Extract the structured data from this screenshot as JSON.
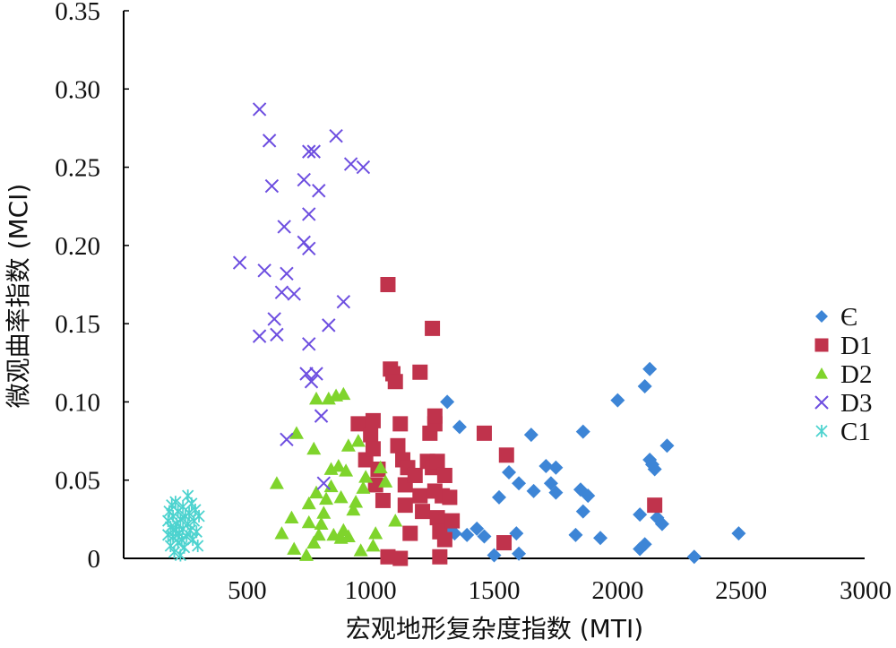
{
  "chart_data": {
    "type": "scatter",
    "title": "",
    "xlabel": "宏观地形复杂度指数 (MTI)",
    "ylabel": "微观曲率指数 (MCI)",
    "xlim": [
      0,
      3000
    ],
    "ylim": [
      0,
      0.35
    ],
    "xticks": [
      "500",
      "1000",
      "1500",
      "2000",
      "2500",
      "3000"
    ],
    "yticks": [
      "0",
      "0.05",
      "0.10",
      "0.15",
      "0.20",
      "0.25",
      "0.30",
      "0.35"
    ],
    "grid": false,
    "legend_position": "right",
    "series": [
      {
        "name": "Є",
        "marker": "diamond",
        "color": "#3d85d6",
        "points": [
          [
            1310,
            0.1
          ],
          [
            1360,
            0.084
          ],
          [
            1310,
            0.019
          ],
          [
            1340,
            0.016
          ],
          [
            1390,
            0.015
          ],
          [
            1430,
            0.019
          ],
          [
            1460,
            0.014
          ],
          [
            1500,
            0.002
          ],
          [
            1520,
            0.039
          ],
          [
            1560,
            0.055
          ],
          [
            1590,
            0.016
          ],
          [
            1600,
            0.048
          ],
          [
            1600,
            0.003
          ],
          [
            1650,
            0.079
          ],
          [
            1660,
            0.043
          ],
          [
            1710,
            0.059
          ],
          [
            1730,
            0.048
          ],
          [
            1750,
            0.058
          ],
          [
            1750,
            0.042
          ],
          [
            1830,
            0.015
          ],
          [
            1850,
            0.044
          ],
          [
            1860,
            0.081
          ],
          [
            1860,
            0.03
          ],
          [
            1880,
            0.04
          ],
          [
            1930,
            0.013
          ],
          [
            2000,
            0.101
          ],
          [
            2090,
            0.028
          ],
          [
            2090,
            0.006
          ],
          [
            2110,
            0.11
          ],
          [
            2110,
            0.009
          ],
          [
            2130,
            0.121
          ],
          [
            2130,
            0.063
          ],
          [
            2140,
            0.06
          ],
          [
            2150,
            0.057
          ],
          [
            2160,
            0.026
          ],
          [
            2180,
            0.022
          ],
          [
            2200,
            0.072
          ],
          [
            2310,
            0.001
          ],
          [
            2490,
            0.016
          ]
        ]
      },
      {
        "name": "D1",
        "marker": "square",
        "color": "#c0334c",
        "points": [
          [
            950,
            0.086
          ],
          [
            980,
            0.063
          ],
          [
            1000,
            0.079
          ],
          [
            1010,
            0.088
          ],
          [
            1010,
            0.07
          ],
          [
            1020,
            0.047
          ],
          [
            1030,
            0.057
          ],
          [
            1050,
            0.037
          ],
          [
            1070,
            0.175
          ],
          [
            1070,
            0.001
          ],
          [
            1080,
            0.121
          ],
          [
            1090,
            0.118
          ],
          [
            1100,
            0.113
          ],
          [
            1110,
            0.072
          ],
          [
            1120,
            0.086
          ],
          [
            1120,
            0.0
          ],
          [
            1130,
            0.063
          ],
          [
            1140,
            0.047
          ],
          [
            1140,
            0.034
          ],
          [
            1150,
            0.058
          ],
          [
            1160,
            0.016
          ],
          [
            1180,
            0.053
          ],
          [
            1200,
            0.119
          ],
          [
            1200,
            0.04
          ],
          [
            1210,
            0.03
          ],
          [
            1230,
            0.062
          ],
          [
            1240,
            0.08
          ],
          [
            1250,
            0.147
          ],
          [
            1250,
            0.058
          ],
          [
            1260,
            0.043
          ],
          [
            1260,
            0.086
          ],
          [
            1260,
            0.091
          ],
          [
            1270,
            0.062
          ],
          [
            1270,
            0.026
          ],
          [
            1280,
            0.001
          ],
          [
            1280,
            0.017
          ],
          [
            1290,
            0.04
          ],
          [
            1300,
            0.053
          ],
          [
            1300,
            0.012
          ],
          [
            1320,
            0.039
          ],
          [
            1330,
            0.024
          ],
          [
            1460,
            0.08
          ],
          [
            1540,
            0.01
          ],
          [
            1550,
            0.066
          ],
          [
            2150,
            0.034
          ]
        ]
      },
      {
        "name": "D2",
        "marker": "triangle",
        "color": "#7fd42c",
        "points": [
          [
            620,
            0.048
          ],
          [
            640,
            0.016
          ],
          [
            680,
            0.026
          ],
          [
            690,
            0.006
          ],
          [
            700,
            0.08
          ],
          [
            740,
            0.002
          ],
          [
            750,
            0.023
          ],
          [
            750,
            0.035
          ],
          [
            770,
            0.01
          ],
          [
            770,
            0.07
          ],
          [
            780,
            0.102
          ],
          [
            780,
            0.042
          ],
          [
            790,
            0.015
          ],
          [
            800,
            0.022
          ],
          [
            810,
            0.029
          ],
          [
            820,
            0.038
          ],
          [
            830,
            0.102
          ],
          [
            840,
            0.046
          ],
          [
            840,
            0.057
          ],
          [
            850,
            0.015
          ],
          [
            860,
            0.104
          ],
          [
            870,
            0.059
          ],
          [
            880,
            0.013
          ],
          [
            880,
            0.039
          ],
          [
            890,
            0.105
          ],
          [
            890,
            0.018
          ],
          [
            900,
            0.056
          ],
          [
            910,
            0.072
          ],
          [
            910,
            0.014
          ],
          [
            930,
            0.031
          ],
          [
            940,
            0.036
          ],
          [
            950,
            0.075
          ],
          [
            960,
            0.005
          ],
          [
            970,
            0.045
          ],
          [
            980,
            0.052
          ],
          [
            1010,
            0.008
          ],
          [
            1020,
            0.016
          ],
          [
            1040,
            0.058
          ],
          [
            1060,
            0.049
          ],
          [
            1100,
            0.024
          ]
        ]
      },
      {
        "name": "D3",
        "marker": "x",
        "color": "#6d4ee0",
        "points": [
          [
            470,
            0.189
          ],
          [
            550,
            0.287
          ],
          [
            550,
            0.142
          ],
          [
            570,
            0.184
          ],
          [
            590,
            0.267
          ],
          [
            600,
            0.238
          ],
          [
            610,
            0.153
          ],
          [
            620,
            0.143
          ],
          [
            640,
            0.17
          ],
          [
            650,
            0.212
          ],
          [
            660,
            0.076
          ],
          [
            660,
            0.182
          ],
          [
            690,
            0.169
          ],
          [
            730,
            0.242
          ],
          [
            730,
            0.202
          ],
          [
            740,
            0.118
          ],
          [
            750,
            0.26
          ],
          [
            750,
            0.22
          ],
          [
            750,
            0.198
          ],
          [
            750,
            0.137
          ],
          [
            760,
            0.113
          ],
          [
            770,
            0.26
          ],
          [
            780,
            0.118
          ],
          [
            790,
            0.235
          ],
          [
            800,
            0.091
          ],
          [
            810,
            0.048
          ],
          [
            830,
            0.149
          ],
          [
            860,
            0.27
          ],
          [
            890,
            0.164
          ],
          [
            920,
            0.252
          ],
          [
            970,
            0.25
          ]
        ]
      },
      {
        "name": "C1",
        "marker": "asterisk",
        "color": "#4dd3cf",
        "points": [
          [
            180,
            0.015
          ],
          [
            180,
            0.024
          ],
          [
            185,
            0.03
          ],
          [
            190,
            0.008
          ],
          [
            190,
            0.02
          ],
          [
            195,
            0.034
          ],
          [
            200,
            0.014
          ],
          [
            200,
            0.027
          ],
          [
            205,
            0.004
          ],
          [
            210,
            0.018
          ],
          [
            210,
            0.036
          ],
          [
            215,
            0.022
          ],
          [
            220,
            0.01
          ],
          [
            220,
            0.03
          ],
          [
            225,
            0.016
          ],
          [
            230,
            0.002
          ],
          [
            230,
            0.025
          ],
          [
            235,
            0.012
          ],
          [
            240,
            0.033
          ],
          [
            240,
            0.019
          ],
          [
            245,
            0.007
          ],
          [
            250,
            0.027
          ],
          [
            255,
            0.014
          ],
          [
            260,
            0.04
          ],
          [
            260,
            0.022
          ],
          [
            265,
            0.029
          ],
          [
            270,
            0.018
          ],
          [
            275,
            0.035
          ],
          [
            280,
            0.012
          ],
          [
            285,
            0.024
          ],
          [
            290,
            0.031
          ],
          [
            295,
            0.017
          ],
          [
            300,
            0.008
          ],
          [
            305,
            0.027
          ]
        ]
      }
    ]
  }
}
